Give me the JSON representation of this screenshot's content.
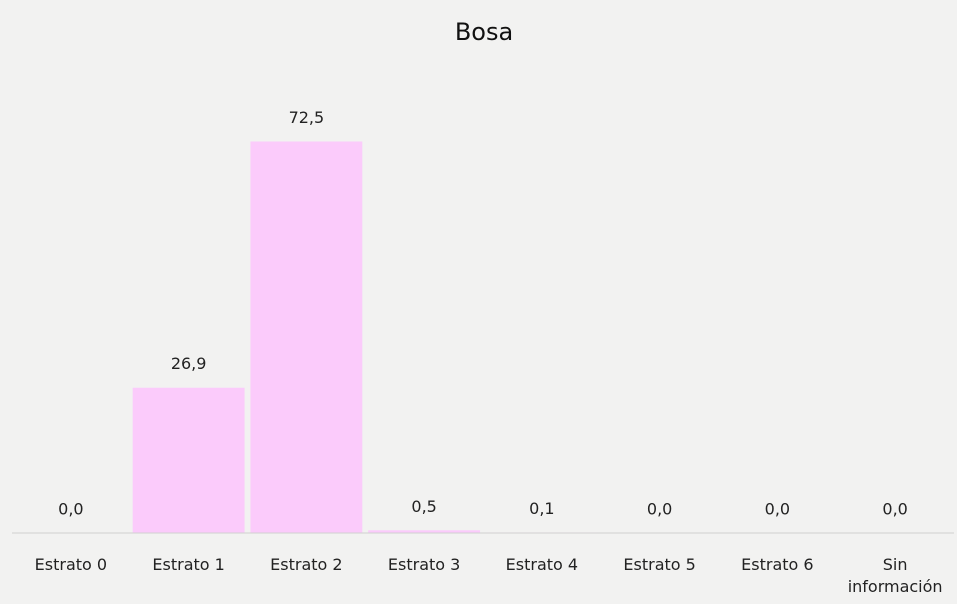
{
  "chart_data": {
    "type": "bar",
    "title": "Bosa",
    "categories": [
      "Estrato 0",
      "Estrato 1",
      "Estrato 2",
      "Estrato 3",
      "Estrato 4",
      "Estrato 5",
      "Estrato 6",
      "Sin información"
    ],
    "values": [
      0,
      26.9,
      72.5,
      0.5,
      0.1,
      0,
      0,
      0
    ],
    "value_labels": [
      "0,0",
      "26,9",
      "72,5",
      "0,5",
      "0,1",
      "0,0",
      "0,0",
      "0,0"
    ],
    "color": "#fbcbfb",
    "ylim": [
      0,
      80
    ]
  }
}
